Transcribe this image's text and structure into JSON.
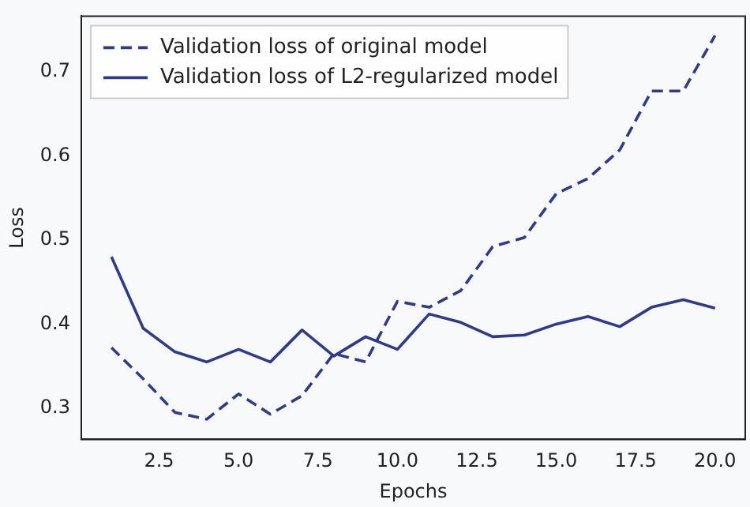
{
  "chart_data": {
    "type": "line",
    "xlabel": "Epochs",
    "ylabel": "Loss",
    "x": [
      1,
      2,
      3,
      4,
      5,
      6,
      7,
      8,
      9,
      10,
      11,
      12,
      13,
      14,
      15,
      16,
      17,
      18,
      19,
      20
    ],
    "series": [
      {
        "name": "Validation loss of original model",
        "color": "#2e3b8c",
        "line_style": "dashed",
        "values": [
          0.372,
          0.335,
          0.295,
          0.287,
          0.317,
          0.293,
          0.315,
          0.365,
          0.355,
          0.427,
          0.42,
          0.44,
          0.492,
          0.503,
          0.555,
          0.573,
          0.607,
          0.677,
          0.677,
          0.743
        ]
      },
      {
        "name": "Validation loss of L2-regularized model",
        "color": "#2e3b8c",
        "line_style": "solid",
        "values": [
          0.48,
          0.395,
          0.367,
          0.355,
          0.37,
          0.355,
          0.393,
          0.362,
          0.385,
          0.37,
          0.412,
          0.402,
          0.385,
          0.387,
          0.4,
          0.409,
          0.397,
          0.42,
          0.429,
          0.419
        ]
      }
    ],
    "xlim": [
      0.05,
      20.95
    ],
    "ylim": [
      0.263,
      0.766
    ],
    "xticks": [
      {
        "value": 2.5,
        "label": "2.5"
      },
      {
        "value": 5,
        "label": "5.0"
      },
      {
        "value": 7.5,
        "label": "7.5"
      },
      {
        "value": 10,
        "label": "10.0"
      },
      {
        "value": 12.5,
        "label": "12.5"
      },
      {
        "value": 15,
        "label": "15.0"
      },
      {
        "value": 17.5,
        "label": "17.5"
      },
      {
        "value": 20,
        "label": "20.0"
      }
    ],
    "yticks": [
      0.3,
      0.4,
      0.5,
      0.6,
      0.7
    ],
    "grid": false,
    "legend": "top left",
    "marker": "none"
  }
}
